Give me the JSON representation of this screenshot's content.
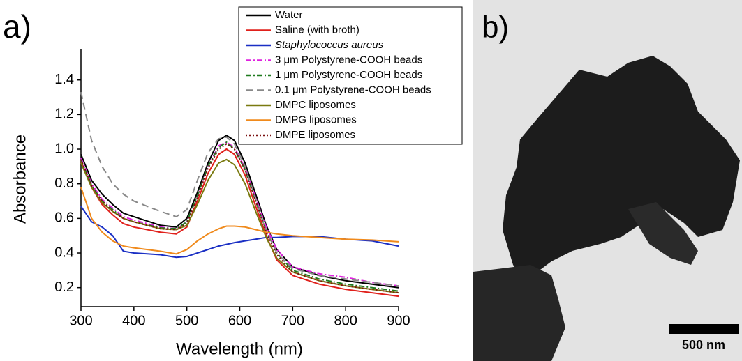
{
  "chart_data": {
    "type": "line",
    "panel_label": "a)",
    "x_label": "Wavelength (nm)",
    "y_label": "Absorbance",
    "x": [
      300,
      320,
      340,
      360,
      380,
      400,
      450,
      480,
      500,
      520,
      540,
      560,
      575,
      590,
      610,
      630,
      650,
      670,
      700,
      750,
      800,
      850,
      900
    ],
    "xlim": [
      300,
      900
    ],
    "xticks": [
      300,
      400,
      500,
      600,
      700,
      800,
      900
    ],
    "ylim": [
      0.09,
      1.58
    ],
    "yticks": [
      0.2,
      0.4,
      0.6,
      0.8,
      {
        "value": 1,
        "label": "1.0"
      },
      1.2,
      1.4
    ],
    "series": [
      {
        "name": "Water",
        "color": "#000000",
        "dash": "none",
        "values": [
          0.97,
          0.82,
          0.74,
          0.68,
          0.63,
          0.61,
          0.56,
          0.55,
          0.6,
          0.75,
          0.92,
          1.05,
          1.08,
          1.05,
          0.92,
          0.74,
          0.56,
          0.42,
          0.32,
          0.27,
          0.24,
          0.22,
          0.2
        ]
      },
      {
        "name": "Saline (with broth)",
        "color": "#e0201b",
        "dash": "none",
        "values": [
          0.93,
          0.78,
          0.68,
          0.62,
          0.57,
          0.55,
          0.52,
          0.51,
          0.55,
          0.7,
          0.86,
          0.97,
          1.0,
          0.97,
          0.85,
          0.67,
          0.5,
          0.36,
          0.27,
          0.22,
          0.19,
          0.17,
          0.15
        ]
      },
      {
        "name": "Staphylococcus aureus",
        "italic": true,
        "color": "#1a2fc4",
        "dash": "none",
        "values": [
          0.67,
          0.58,
          0.55,
          0.5,
          0.41,
          0.4,
          0.39,
          0.375,
          0.38,
          0.4,
          0.42,
          0.44,
          0.45,
          0.46,
          0.47,
          0.48,
          0.49,
          0.49,
          0.495,
          0.495,
          0.48,
          0.47,
          0.44
        ]
      },
      {
        "name": "3 μm Polystyrene-COOH beads",
        "color": "#e020e0",
        "dash": "8,3,2,3",
        "values": [
          0.95,
          0.8,
          0.71,
          0.66,
          0.61,
          0.59,
          0.55,
          0.54,
          0.58,
          0.73,
          0.9,
          1.02,
          1.04,
          1.01,
          0.89,
          0.72,
          0.55,
          0.42,
          0.32,
          0.28,
          0.26,
          0.23,
          0.21
        ]
      },
      {
        "name": "1 μm Polystyrene-COOH beads",
        "color": "#1f7a1f",
        "dash": "8,3,2,3",
        "values": [
          0.94,
          0.79,
          0.7,
          0.65,
          0.6,
          0.58,
          0.545,
          0.54,
          0.58,
          0.73,
          0.9,
          1.01,
          1.04,
          1.0,
          0.88,
          0.7,
          0.53,
          0.4,
          0.3,
          0.25,
          0.22,
          0.2,
          0.18
        ]
      },
      {
        "name": "0.1 μm Polystyrene-COOH beads",
        "color": "#888888",
        "dash": "10,6",
        "values": [
          1.33,
          1.05,
          0.9,
          0.8,
          0.74,
          0.7,
          0.64,
          0.61,
          0.65,
          0.82,
          0.98,
          1.06,
          1.07,
          1.03,
          0.9,
          0.71,
          0.53,
          0.4,
          0.31,
          0.27,
          0.25,
          0.23,
          0.21
        ]
      },
      {
        "name": "DMPC liposomes",
        "color": "#7a7a10",
        "dash": "none",
        "values": [
          0.92,
          0.78,
          0.69,
          0.64,
          0.6,
          0.58,
          0.54,
          0.535,
          0.56,
          0.68,
          0.82,
          0.92,
          0.94,
          0.91,
          0.8,
          0.64,
          0.49,
          0.37,
          0.29,
          0.24,
          0.21,
          0.19,
          0.17
        ]
      },
      {
        "name": "DMPG liposomes",
        "color": "#f08a1c",
        "dash": "none",
        "values": [
          0.78,
          0.6,
          0.52,
          0.47,
          0.44,
          0.43,
          0.41,
          0.395,
          0.42,
          0.47,
          0.51,
          0.54,
          0.555,
          0.555,
          0.55,
          0.535,
          0.52,
          0.51,
          0.5,
          0.49,
          0.48,
          0.475,
          0.465
        ]
      },
      {
        "name": "DMPE liposomes",
        "color": "#7a1010",
        "dash": "2,3",
        "values": [
          0.94,
          0.79,
          0.7,
          0.64,
          0.6,
          0.58,
          0.54,
          0.535,
          0.57,
          0.72,
          0.89,
          1.0,
          1.03,
          1.0,
          0.88,
          0.7,
          0.52,
          0.39,
          0.29,
          0.24,
          0.21,
          0.19,
          0.17
        ]
      }
    ]
  },
  "image": {
    "panel_label": "b)",
    "scale_bar": "500 nm"
  }
}
